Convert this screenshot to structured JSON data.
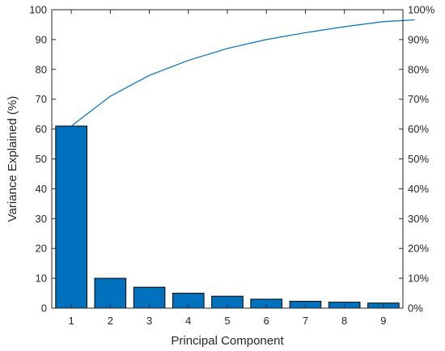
{
  "chart_data": {
    "type": "bar",
    "title": "",
    "xlabel": "Principal Component",
    "ylabel": "Variance Explained (%)",
    "categories": [
      "1",
      "2",
      "3",
      "4",
      "5",
      "6",
      "7",
      "8",
      "9"
    ],
    "values": [
      61,
      10,
      7,
      5,
      4,
      3,
      2.3,
      2,
      1.7
    ],
    "cumulative_line": {
      "x": [
        1,
        2,
        3,
        4,
        5,
        6,
        7,
        8,
        9,
        9.8
      ],
      "values": [
        61,
        71,
        78,
        83,
        87,
        90,
        92.3,
        94.3,
        96,
        96.6
      ]
    },
    "ylim": [
      0,
      100
    ],
    "y_ticks": [
      "0",
      "10",
      "20",
      "30",
      "40",
      "50",
      "60",
      "70",
      "80",
      "90",
      "100"
    ],
    "y2_ticks": [
      "0%",
      "10%",
      "20%",
      "30%",
      "40%",
      "50%",
      "60%",
      "70%",
      "80%",
      "90%",
      "100%"
    ],
    "grid": false,
    "colors": {
      "bar": "#0072BD",
      "line": "#0072BD",
      "axis": "#262626"
    }
  }
}
